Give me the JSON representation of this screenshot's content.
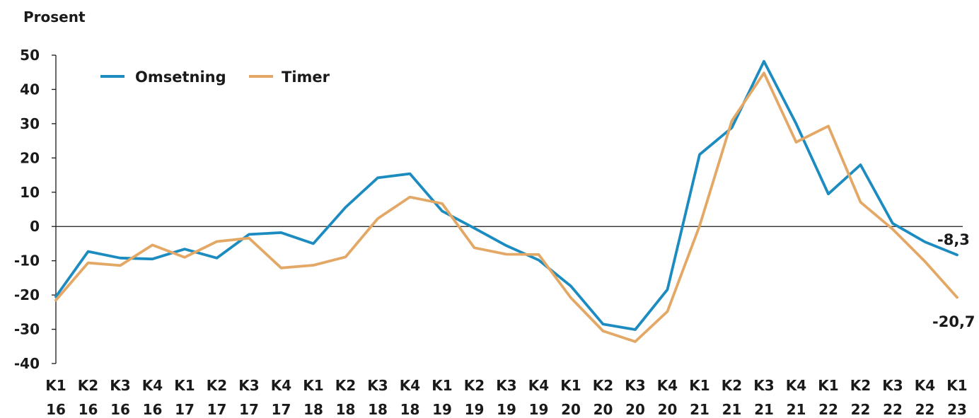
{
  "chart_data": {
    "type": "line",
    "ylabel": "Prosent",
    "ylim": [
      -40,
      50
    ],
    "yticks": [
      50,
      40,
      30,
      20,
      10,
      0,
      -10,
      -20,
      -30,
      -40
    ],
    "categories": [
      [
        "K1",
        "16"
      ],
      [
        "K2",
        "16"
      ],
      [
        "K3",
        "16"
      ],
      [
        "K4",
        "16"
      ],
      [
        "K1",
        "17"
      ],
      [
        "K2",
        "17"
      ],
      [
        "K3",
        "17"
      ],
      [
        "K4",
        "17"
      ],
      [
        "K1",
        "18"
      ],
      [
        "K2",
        "18"
      ],
      [
        "K3",
        "18"
      ],
      [
        "K4",
        "18"
      ],
      [
        "K1",
        "19"
      ],
      [
        "K2",
        "19"
      ],
      [
        "K3",
        "19"
      ],
      [
        "K4",
        "19"
      ],
      [
        "K1",
        "20"
      ],
      [
        "K2",
        "20"
      ],
      [
        "K3",
        "20"
      ],
      [
        "K4",
        "20"
      ],
      [
        "K1",
        "21"
      ],
      [
        "K2",
        "21"
      ],
      [
        "K3",
        "21"
      ],
      [
        "K4",
        "21"
      ],
      [
        "K1",
        "22"
      ],
      [
        "K2",
        "22"
      ],
      [
        "K3",
        "22"
      ],
      [
        "K4",
        "22"
      ],
      [
        "K1",
        "23"
      ]
    ],
    "legend_position": "top-left",
    "series": [
      {
        "name": "Omsetning",
        "color": "#1b8bc0",
        "values": [
          -20.5,
          -7.3,
          -9.2,
          -9.5,
          -6.6,
          -9.2,
          -2.3,
          -1.8,
          -5.0,
          5.6,
          14.2,
          15.4,
          4.5,
          -0.5,
          -5.6,
          -9.8,
          -17.4,
          -28.5,
          -30.1,
          -18.4,
          21.0,
          28.8,
          48.2,
          30.0,
          9.5,
          18.0,
          0.9,
          -4.5,
          -8.3
        ]
      },
      {
        "name": "Timer",
        "color": "#e3a865",
        "values": [
          -21.5,
          -10.6,
          -11.4,
          -5.4,
          -9.0,
          -4.4,
          -3.4,
          -12.1,
          -11.3,
          -8.9,
          2.3,
          8.6,
          6.7,
          -6.2,
          -8.1,
          -8.2,
          -20.8,
          -30.5,
          -33.6,
          -24.8,
          0.2,
          30.8,
          44.8,
          24.6,
          29.3,
          7.1,
          -0.8,
          -10.2,
          -20.7
        ]
      }
    ],
    "end_labels": [
      "-8,3",
      "-20,7"
    ]
  }
}
